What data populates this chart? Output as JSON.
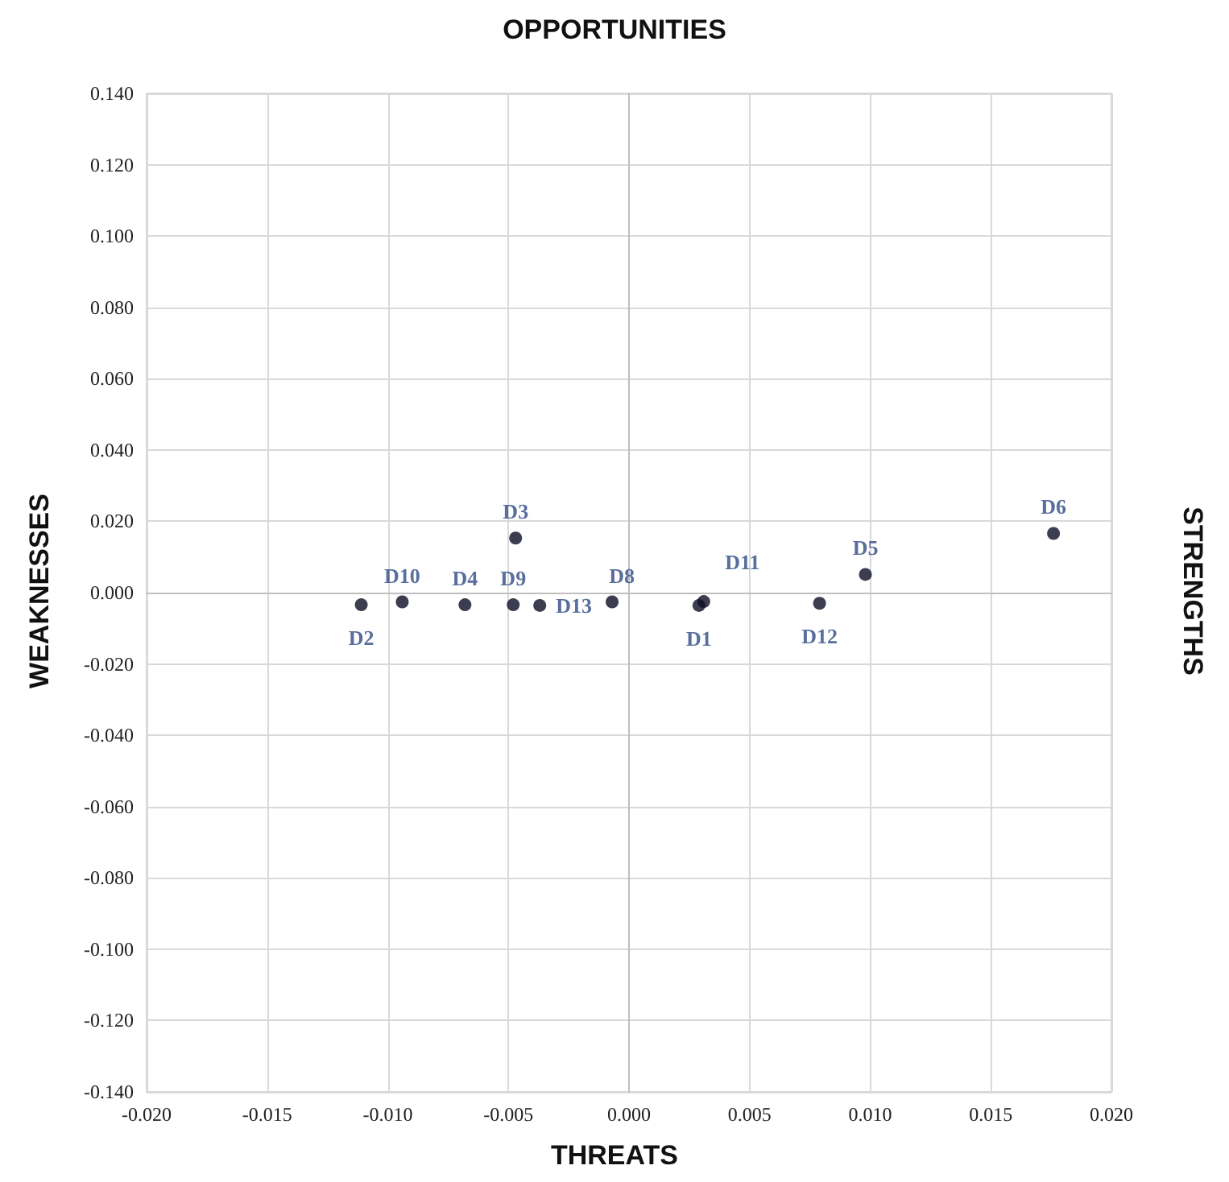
{
  "chart_data": {
    "type": "scatter",
    "annotations": [
      "OPPORTUNITIES",
      "THREATS",
      "WEAKNESSES",
      "STRENGTHS"
    ],
    "xlim": [
      -0.02,
      0.02
    ],
    "xticks": [
      {
        "value": -0.02,
        "label": "-0.020"
      },
      {
        "value": -0.015,
        "label": "-0.015"
      },
      {
        "value": -0.01,
        "label": "-0.010"
      },
      {
        "value": -0.005,
        "label": "-0.005"
      },
      {
        "value": 0,
        "label": "0.000"
      },
      {
        "value": 0.005,
        "label": "0.005"
      },
      {
        "value": 0.01,
        "label": "0.010"
      },
      {
        "value": 0.015,
        "label": "0.015"
      },
      {
        "value": 0.02,
        "label": "0.020"
      }
    ],
    "ylim": [
      -0.14,
      0.14
    ],
    "yticks": [
      {
        "value": -0.14,
        "label": "-0.140"
      },
      {
        "value": -0.12,
        "label": "-0.120"
      },
      {
        "value": -0.1,
        "label": "-0.100"
      },
      {
        "value": -0.08,
        "label": "-0.080"
      },
      {
        "value": -0.06,
        "label": "-0.060"
      },
      {
        "value": -0.04,
        "label": "-0.040"
      },
      {
        "value": -0.02,
        "label": "-0.020"
      },
      {
        "value": 0,
        "label": "0.000"
      },
      {
        "value": 0.02,
        "label": "0.020"
      },
      {
        "value": 0.04,
        "label": "0.040"
      },
      {
        "value": 0.06,
        "label": "0.060"
      },
      {
        "value": 0.08,
        "label": "0.080"
      },
      {
        "value": 0.1,
        "label": "0.100"
      },
      {
        "value": 0.12,
        "label": "0.120"
      },
      {
        "value": 0.14,
        "label": "0.140"
      }
    ],
    "grid": true,
    "legend": false,
    "marker": "circle",
    "series": [
      {
        "name": "D1",
        "color": "#0d0d26",
        "x": [
          0.0029
        ],
        "values": [
          -0.0036
        ]
      },
      {
        "name": "D2",
        "color": "#0d0d26",
        "x": [
          -0.0111
        ],
        "values": [
          -0.0034
        ]
      },
      {
        "name": "D3",
        "color": "#0d0d26",
        "x": [
          -0.0047
        ],
        "values": [
          0.0153
        ]
      },
      {
        "name": "D4",
        "color": "#0d0d26",
        "x": [
          -0.0068
        ],
        "values": [
          -0.0034
        ]
      },
      {
        "name": "D5",
        "color": "#0d0d26",
        "x": [
          0.0098
        ],
        "values": [
          0.0051
        ]
      },
      {
        "name": "D6",
        "color": "#0d0d26",
        "x": [
          0.0176
        ],
        "values": [
          0.0166
        ]
      },
      {
        "name": "D8",
        "color": "#0d0d26",
        "x": [
          -0.0007
        ],
        "values": [
          -0.0026
        ]
      },
      {
        "name": "D9",
        "color": "#0d0d26",
        "x": [
          -0.0048
        ],
        "values": [
          -0.0034
        ]
      },
      {
        "name": "D10",
        "color": "#0d0d26",
        "x": [
          -0.0094
        ],
        "values": [
          -0.0026
        ]
      },
      {
        "name": "D11",
        "color": "#0d0d26",
        "x": [
          0.0031
        ],
        "values": [
          -0.0025
        ]
      },
      {
        "name": "D12",
        "color": "#0d0d26",
        "x": [
          0.0079
        ],
        "values": [
          -0.003
        ]
      },
      {
        "name": "D13",
        "color": "#0d0d26",
        "x": [
          -0.0037
        ],
        "values": [
          -0.0036
        ]
      }
    ]
  }
}
